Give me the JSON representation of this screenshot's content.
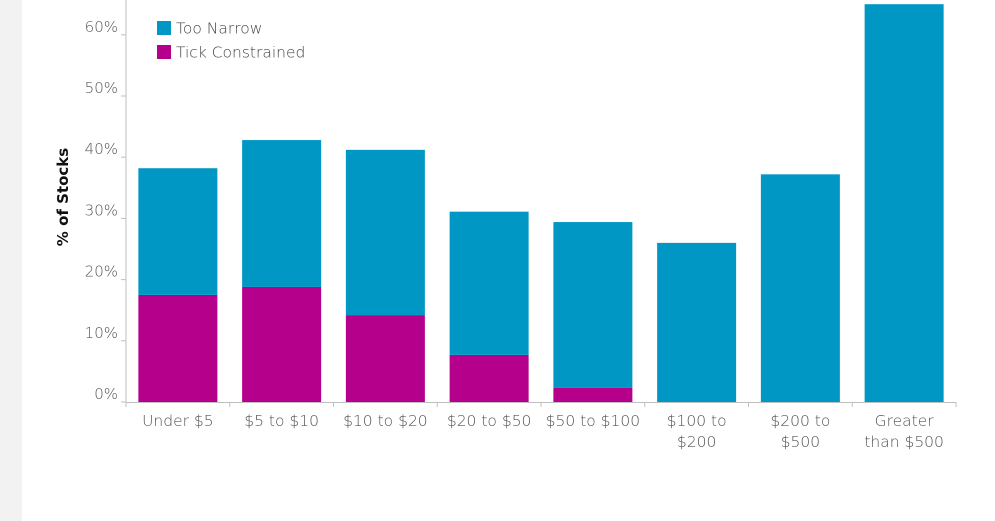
{
  "chart_data": {
    "type": "bar",
    "stacked": true,
    "ylabel": "% of Stocks",
    "xlabel": "",
    "ylim": [
      0,
      63
    ],
    "yticks": [
      0,
      10,
      20,
      30,
      40,
      50,
      60
    ],
    "ytick_labels": [
      "0%",
      "10%",
      "20%",
      "30%",
      "40%",
      "50%",
      "60%"
    ],
    "categories": [
      [
        "Under $5"
      ],
      [
        "$5 to $10"
      ],
      [
        "$10 to $20"
      ],
      [
        "$20 to $50"
      ],
      [
        "$50 to $100"
      ],
      [
        "$100 to",
        "$200"
      ],
      [
        "$200 to",
        "$500"
      ],
      [
        "Greater",
        "than $500"
      ]
    ],
    "series": [
      {
        "name": "Tick Constrained",
        "color": "#b5008b",
        "values": [
          17.5,
          18.8,
          14.2,
          7.7,
          2.3,
          0,
          0,
          0
        ]
      },
      {
        "name": "Too Narrow",
        "color": "#0097c4",
        "values": [
          20.7,
          24.0,
          27.0,
          23.4,
          27.1,
          26.0,
          37.2,
          65.0
        ]
      }
    ],
    "legend_order": [
      "Too Narrow",
      "Tick Constrained"
    ],
    "legend_position": "top-left",
    "grid": false
  }
}
